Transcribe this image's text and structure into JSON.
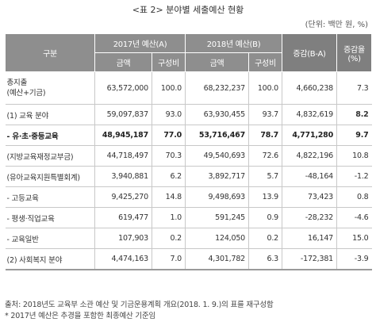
{
  "title": "<표 2> 분야별 세출예산 현황",
  "unit": "(단위: 백만 원, %)",
  "header": {
    "category": "구분",
    "budget_2017": "2017년 예산(A)",
    "budget_2018": "2018년 예산(B)",
    "change": "증감(B-A)",
    "change_rate": "증감율(%)",
    "amount": "금액",
    "share": "구성비"
  },
  "rows": [
    {
      "label": "총지출",
      "label2": "(예산+기금)",
      "a_amount": "63,572,000",
      "a_share": "100.0",
      "b_amount": "68,232,237",
      "b_share": "100.0",
      "change": "4,660,238",
      "rate": "7.3"
    },
    {
      "label": "(1) 교육 분야",
      "a_amount": "59,097,837",
      "a_share": "93.0",
      "b_amount": "63,930,455",
      "b_share": "93.7",
      "change": "4,832,619",
      "rate": "8.2"
    },
    {
      "label": "- 유·초·중등교육",
      "a_amount": "48,945,187",
      "a_share": "77.0",
      "b_amount": "53,716,467",
      "b_share": "78.7",
      "change": "4,771,280",
      "rate": "9.7"
    },
    {
      "label": "(지방교육재정교부금)",
      "a_amount": "44,718,497",
      "a_share": "70.3",
      "b_amount": "49,540,693",
      "b_share": "72.6",
      "change": "4,822,196",
      "rate": "10.8"
    },
    {
      "label": "(유아교육지원특별회계)",
      "a_amount": "3,940,881",
      "a_share": "6.2",
      "b_amount": "3,892,717",
      "b_share": "5.7",
      "change": "-48,164",
      "rate": "-1.2"
    },
    {
      "label": "- 고등교육",
      "a_amount": "9,425,270",
      "a_share": "14.8",
      "b_amount": "9,498,693",
      "b_share": "13.9",
      "change": "73,423",
      "rate": "0.8"
    },
    {
      "label": "- 평생·직업교육",
      "a_amount": "619,477",
      "a_share": "1.0",
      "b_amount": "591,245",
      "b_share": "0.9",
      "change": "-28,232",
      "rate": "-4.6"
    },
    {
      "label": "- 교육일반",
      "a_amount": "107,903",
      "a_share": "0.2",
      "b_amount": "124,050",
      "b_share": "0.2",
      "change": "16,147",
      "rate": "15.0"
    },
    {
      "label": "(2) 사회복지 분야",
      "a_amount": "4,474,163",
      "a_share": "7.0",
      "b_amount": "4,301,782",
      "b_share": "6.3",
      "change": "-172,381",
      "rate": "-3.9"
    }
  ],
  "notes": {
    "source": "출처: 2018년도 교육부 소관 예산 및 기금운용계획 개요(2018. 1. 9.)의 표를 재구성함",
    "footnote": "* 2017년 예산은 추경을 포함한 최종예산 기준임"
  }
}
